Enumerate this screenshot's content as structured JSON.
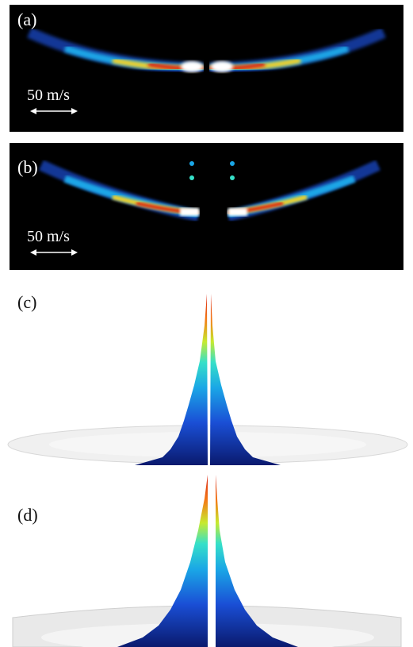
{
  "panels": [
    {
      "label": "(a)",
      "scale_text": "50 m/s"
    },
    {
      "label": "(b)",
      "scale_text": "50 m/s"
    },
    {
      "label": "(c)"
    },
    {
      "label": "(d)"
    }
  ],
  "colors": {
    "background_dark": "#000000",
    "colormap": [
      "#0a1a6e",
      "#1a4fd6",
      "#1aa6e6",
      "#36e0c8",
      "#c7ea2f",
      "#f2d12a",
      "#f47b16",
      "#d81f12",
      "#ffffff"
    ]
  }
}
